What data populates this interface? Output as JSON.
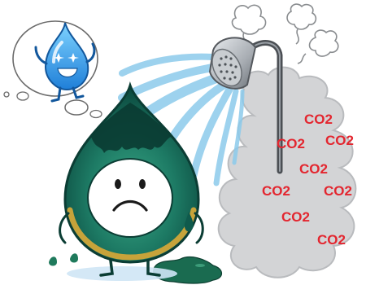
{
  "scene": {
    "co2_labels": [
      "CO2",
      "CO2",
      "CO2",
      "CO2",
      "CO2",
      "CO2",
      "CO2",
      "CO2"
    ],
    "colors": {
      "drop_dark": "#0f5a4c",
      "drop_light": "#2d9c7d",
      "drop_rim": "#b7932e",
      "water_blue": "#7fc4e8",
      "smoke_gray": "#cfd0d2",
      "co2_red": "#e3262f",
      "happy_drop": "#2f8fe0"
    },
    "icons": [
      "thought-bubble-icon",
      "happy-water-drop-icon",
      "shower-head-icon",
      "sad-dirty-drop-icon",
      "smoke-cloud-icon",
      "steam-puff-icon",
      "green-puddle-icon"
    ]
  }
}
